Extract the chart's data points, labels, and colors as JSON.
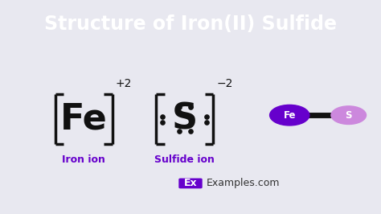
{
  "title": "Structure of Iron(II) Sulfide",
  "title_bg_color": "#7B00FF",
  "title_text_color": "#FFFFFF",
  "body_bg_color": "#E8E8F0",
  "fe_label": "Fe",
  "s_label": "S",
  "fe_charge": "+2",
  "s_charge": "−2",
  "iron_ion_label": "Iron ion",
  "sulfide_ion_label": "Sulfide ion",
  "ion_label_color": "#6600CC",
  "bracket_color": "#111111",
  "fe_text_color": "#111111",
  "s_text_color": "#111111",
  "dot_color": "#111111",
  "fe_circle_color": "#6600CC",
  "s_circle_color": "#CC88DD",
  "fe_circle_label_color": "#FFFFFF",
  "s_circle_label_color": "#FFFFFF",
  "bond_color": "#111111",
  "watermark_box_color": "#6600CC",
  "watermark_text": "Examples.com",
  "watermark_ex": "Ex"
}
